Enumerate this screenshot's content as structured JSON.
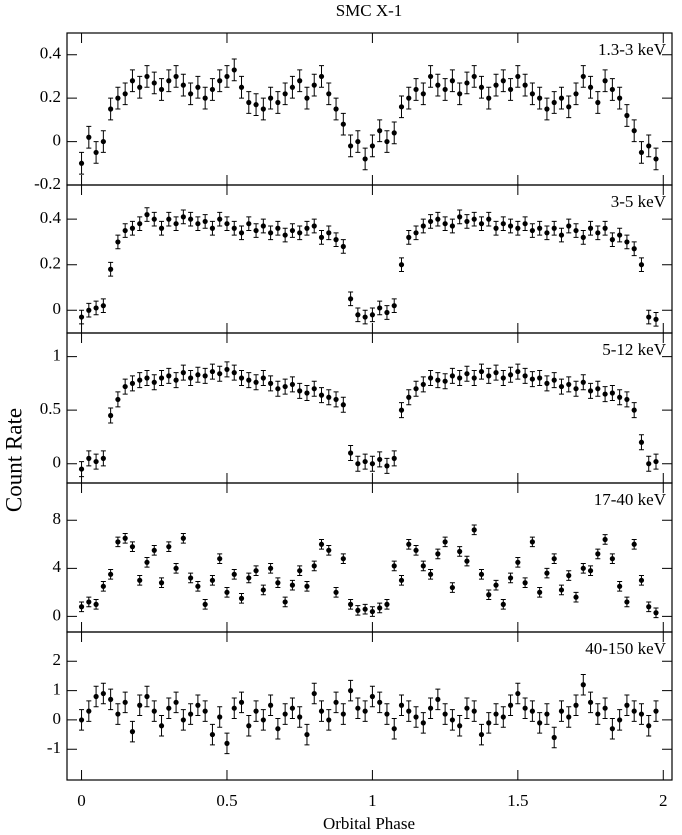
{
  "title": "SMC X-1",
  "x_label": "Orbital Phase",
  "y_label": "Count Rate",
  "chart_data": [
    {
      "type": "scatter",
      "label": "1.3-3 keV",
      "xlim": [
        -0.05,
        2.03
      ],
      "xticks": [
        0,
        0.5,
        1,
        1.5,
        2
      ],
      "ylim": [
        -0.2,
        0.5
      ],
      "yticks": [
        -0.2,
        0,
        0.2,
        0.4
      ],
      "color": "#000000",
      "yerr": 0.05,
      "x": [
        0,
        0.025,
        0.05,
        0.075,
        0.1,
        0.125,
        0.15,
        0.175,
        0.2,
        0.225,
        0.25,
        0.275,
        0.3,
        0.325,
        0.35,
        0.375,
        0.4,
        0.425,
        0.45,
        0.475,
        0.5,
        0.525,
        0.55,
        0.575,
        0.6,
        0.625,
        0.65,
        0.675,
        0.7,
        0.725,
        0.75,
        0.775,
        0.8,
        0.825,
        0.85,
        0.875,
        0.9,
        0.925,
        0.95,
        0.975,
        1,
        1.025,
        1.05,
        1.075,
        1.1,
        1.125,
        1.15,
        1.175,
        1.2,
        1.225,
        1.25,
        1.275,
        1.3,
        1.325,
        1.35,
        1.375,
        1.4,
        1.425,
        1.45,
        1.475,
        1.5,
        1.525,
        1.55,
        1.575,
        1.6,
        1.625,
        1.65,
        1.675,
        1.7,
        1.725,
        1.75,
        1.775,
        1.8,
        1.825,
        1.85,
        1.875,
        1.9,
        1.925,
        1.95,
        1.975
      ],
      "values": [
        -0.1,
        0.02,
        -0.05,
        0.0,
        0.15,
        0.2,
        0.22,
        0.28,
        0.25,
        0.3,
        0.27,
        0.24,
        0.28,
        0.3,
        0.26,
        0.22,
        0.25,
        0.2,
        0.24,
        0.28,
        0.3,
        0.33,
        0.25,
        0.18,
        0.17,
        0.15,
        0.2,
        0.18,
        0.22,
        0.25,
        0.28,
        0.2,
        0.26,
        0.3,
        0.22,
        0.15,
        0.08,
        -0.02,
        0.0,
        -0.08,
        -0.02,
        0.05,
        0.0,
        0.04,
        0.16,
        0.2,
        0.24,
        0.22,
        0.3,
        0.26,
        0.24,
        0.28,
        0.22,
        0.27,
        0.3,
        0.25,
        0.2,
        0.26,
        0.28,
        0.24,
        0.3,
        0.26,
        0.22,
        0.2,
        0.15,
        0.18,
        0.2,
        0.16,
        0.22,
        0.3,
        0.25,
        0.18,
        0.28,
        0.24,
        0.2,
        0.12,
        0.05,
        -0.05,
        -0.02,
        -0.08
      ]
    },
    {
      "type": "scatter",
      "label": "3-5 keV",
      "xlim": [
        -0.05,
        2.03
      ],
      "xticks": [
        0,
        0.5,
        1,
        1.5,
        2
      ],
      "ylim": [
        -0.1,
        0.55
      ],
      "yticks": [
        0,
        0.2,
        0.4
      ],
      "color": "#000000",
      "yerr": 0.03,
      "x": [
        0,
        0.025,
        0.05,
        0.075,
        0.1,
        0.125,
        0.15,
        0.175,
        0.2,
        0.225,
        0.25,
        0.275,
        0.3,
        0.325,
        0.35,
        0.375,
        0.4,
        0.425,
        0.45,
        0.475,
        0.5,
        0.525,
        0.55,
        0.575,
        0.6,
        0.625,
        0.65,
        0.675,
        0.7,
        0.725,
        0.75,
        0.775,
        0.8,
        0.825,
        0.85,
        0.875,
        0.9,
        0.925,
        0.95,
        0.975,
        1,
        1.025,
        1.05,
        1.075,
        1.1,
        1.125,
        1.15,
        1.175,
        1.2,
        1.225,
        1.25,
        1.275,
        1.3,
        1.325,
        1.35,
        1.375,
        1.4,
        1.425,
        1.45,
        1.475,
        1.5,
        1.525,
        1.55,
        1.575,
        1.6,
        1.625,
        1.65,
        1.675,
        1.7,
        1.725,
        1.75,
        1.775,
        1.8,
        1.825,
        1.85,
        1.875,
        1.9,
        1.925,
        1.95,
        1.975
      ],
      "values": [
        -0.03,
        0.0,
        0.01,
        0.02,
        0.18,
        0.3,
        0.35,
        0.36,
        0.38,
        0.42,
        0.4,
        0.36,
        0.4,
        0.38,
        0.41,
        0.4,
        0.38,
        0.39,
        0.36,
        0.4,
        0.38,
        0.36,
        0.34,
        0.38,
        0.35,
        0.37,
        0.34,
        0.36,
        0.33,
        0.35,
        0.34,
        0.36,
        0.37,
        0.32,
        0.34,
        0.31,
        0.28,
        0.05,
        -0.02,
        -0.03,
        -0.02,
        0.01,
        -0.01,
        0.02,
        0.2,
        0.32,
        0.34,
        0.37,
        0.39,
        0.4,
        0.38,
        0.37,
        0.41,
        0.39,
        0.4,
        0.38,
        0.4,
        0.36,
        0.38,
        0.37,
        0.36,
        0.38,
        0.35,
        0.36,
        0.34,
        0.36,
        0.33,
        0.37,
        0.35,
        0.32,
        0.36,
        0.34,
        0.36,
        0.31,
        0.33,
        0.3,
        0.27,
        0.2,
        -0.03,
        -0.04
      ]
    },
    {
      "type": "scatter",
      "label": "5-12 keV",
      "xlim": [
        -0.05,
        2.03
      ],
      "xticks": [
        0,
        0.5,
        1,
        1.5,
        2
      ],
      "ylim": [
        -0.18,
        1.22
      ],
      "yticks": [
        0,
        0.5,
        1
      ],
      "color": "#000000",
      "yerr": 0.07,
      "x": [
        0,
        0.025,
        0.05,
        0.075,
        0.1,
        0.125,
        0.15,
        0.175,
        0.2,
        0.225,
        0.25,
        0.275,
        0.3,
        0.325,
        0.35,
        0.375,
        0.4,
        0.425,
        0.45,
        0.475,
        0.5,
        0.525,
        0.55,
        0.575,
        0.6,
        0.625,
        0.65,
        0.675,
        0.7,
        0.725,
        0.75,
        0.775,
        0.8,
        0.825,
        0.85,
        0.875,
        0.9,
        0.925,
        0.95,
        0.975,
        1,
        1.025,
        1.05,
        1.075,
        1.1,
        1.125,
        1.15,
        1.175,
        1.2,
        1.225,
        1.25,
        1.275,
        1.3,
        1.325,
        1.35,
        1.375,
        1.4,
        1.425,
        1.45,
        1.475,
        1.5,
        1.525,
        1.55,
        1.575,
        1.6,
        1.625,
        1.65,
        1.675,
        1.7,
        1.725,
        1.75,
        1.775,
        1.8,
        1.825,
        1.85,
        1.875,
        1.9,
        1.925,
        1.95,
        1.975
      ],
      "values": [
        -0.05,
        0.05,
        0.02,
        0.05,
        0.45,
        0.6,
        0.72,
        0.75,
        0.78,
        0.8,
        0.76,
        0.8,
        0.82,
        0.78,
        0.85,
        0.8,
        0.83,
        0.82,
        0.86,
        0.84,
        0.88,
        0.85,
        0.8,
        0.78,
        0.76,
        0.8,
        0.75,
        0.7,
        0.72,
        0.74,
        0.68,
        0.66,
        0.7,
        0.64,
        0.62,
        0.6,
        0.55,
        0.1,
        0.0,
        0.02,
        0.0,
        0.04,
        -0.02,
        0.05,
        0.5,
        0.62,
        0.7,
        0.74,
        0.8,
        0.78,
        0.77,
        0.82,
        0.8,
        0.84,
        0.8,
        0.86,
        0.82,
        0.85,
        0.8,
        0.83,
        0.86,
        0.82,
        0.79,
        0.8,
        0.75,
        0.78,
        0.72,
        0.74,
        0.7,
        0.76,
        0.68,
        0.7,
        0.65,
        0.66,
        0.62,
        0.6,
        0.5,
        0.2,
        0.0,
        0.02
      ]
    },
    {
      "type": "scatter",
      "label": "17-40 keV",
      "xlim": [
        -0.05,
        2.03
      ],
      "xticks": [
        0,
        0.5,
        1,
        1.5,
        2
      ],
      "ylim": [
        -1.3,
        11.1
      ],
      "yticks": [
        0,
        4,
        8
      ],
      "color": "#000000",
      "yerr": 0.4,
      "x": [
        0,
        0.025,
        0.05,
        0.075,
        0.1,
        0.125,
        0.15,
        0.175,
        0.2,
        0.225,
        0.25,
        0.275,
        0.3,
        0.325,
        0.35,
        0.375,
        0.4,
        0.425,
        0.45,
        0.475,
        0.5,
        0.525,
        0.55,
        0.575,
        0.6,
        0.625,
        0.65,
        0.675,
        0.7,
        0.725,
        0.75,
        0.775,
        0.8,
        0.825,
        0.85,
        0.875,
        0.9,
        0.925,
        0.95,
        0.975,
        1,
        1.025,
        1.05,
        1.075,
        1.1,
        1.125,
        1.15,
        1.175,
        1.2,
        1.225,
        1.25,
        1.275,
        1.3,
        1.325,
        1.35,
        1.375,
        1.4,
        1.425,
        1.45,
        1.475,
        1.5,
        1.525,
        1.55,
        1.575,
        1.6,
        1.625,
        1.65,
        1.675,
        1.7,
        1.725,
        1.75,
        1.775,
        1.8,
        1.825,
        1.85,
        1.875,
        1.9,
        1.925,
        1.95,
        1.975
      ],
      "values": [
        0.8,
        1.2,
        1.0,
        2.5,
        3.5,
        6.2,
        6.5,
        5.8,
        3.0,
        4.5,
        5.5,
        2.8,
        5.8,
        4.0,
        6.5,
        3.2,
        2.5,
        1.0,
        3.0,
        4.8,
        2.0,
        3.5,
        1.5,
        3.2,
        3.8,
        2.2,
        4.0,
        2.8,
        1.2,
        2.6,
        3.8,
        2.5,
        4.2,
        6.0,
        5.5,
        2.0,
        4.8,
        1.0,
        0.5,
        0.6,
        0.4,
        0.7,
        1.0,
        4.2,
        3.0,
        6.0,
        5.5,
        4.2,
        3.5,
        5.2,
        6.2,
        2.4,
        5.4,
        4.6,
        7.2,
        3.5,
        1.8,
        2.6,
        1.0,
        3.2,
        4.5,
        2.8,
        6.2,
        2.0,
        3.6,
        4.8,
        2.2,
        3.4,
        1.6,
        4.0,
        3.8,
        5.2,
        6.4,
        4.8,
        2.5,
        1.2,
        6.0,
        3.0,
        0.8,
        0.3
      ]
    },
    {
      "type": "scatter",
      "label": "40-150 keV",
      "xlim": [
        -0.05,
        2.03
      ],
      "xticks": [
        0,
        0.5,
        1,
        1.5,
        2
      ],
      "ylim": [
        -2.05,
        3
      ],
      "yticks": [
        -1,
        0,
        1,
        2
      ],
      "color": "#000000",
      "yerr": 0.35,
      "x": [
        0,
        0.025,
        0.05,
        0.075,
        0.1,
        0.125,
        0.15,
        0.175,
        0.2,
        0.225,
        0.25,
        0.275,
        0.3,
        0.325,
        0.35,
        0.375,
        0.4,
        0.425,
        0.45,
        0.475,
        0.5,
        0.525,
        0.55,
        0.575,
        0.6,
        0.625,
        0.65,
        0.675,
        0.7,
        0.725,
        0.75,
        0.775,
        0.8,
        0.825,
        0.85,
        0.875,
        0.9,
        0.925,
        0.95,
        0.975,
        1,
        1.025,
        1.05,
        1.075,
        1.1,
        1.125,
        1.15,
        1.175,
        1.2,
        1.225,
        1.25,
        1.275,
        1.3,
        1.325,
        1.35,
        1.375,
        1.4,
        1.425,
        1.45,
        1.475,
        1.5,
        1.525,
        1.55,
        1.575,
        1.6,
        1.625,
        1.65,
        1.675,
        1.7,
        1.725,
        1.75,
        1.775,
        1.8,
        1.825,
        1.85,
        1.875,
        1.9,
        1.925,
        1.95,
        1.975
      ],
      "values": [
        0.0,
        0.3,
        0.8,
        0.9,
        0.7,
        0.2,
        0.6,
        -0.4,
        0.5,
        0.8,
        0.3,
        -0.2,
        0.4,
        0.6,
        0.0,
        0.2,
        0.5,
        0.3,
        -0.5,
        0.1,
        -0.8,
        0.4,
        0.6,
        -0.2,
        0.3,
        0.0,
        0.5,
        -0.3,
        0.2,
        0.4,
        0.1,
        -0.5,
        0.9,
        0.3,
        0.0,
        0.6,
        0.2,
        1.0,
        0.4,
        0.3,
        0.8,
        0.6,
        0.2,
        -0.3,
        0.5,
        0.3,
        0.1,
        -0.1,
        0.4,
        0.7,
        0.2,
        0.0,
        -0.2,
        0.4,
        0.3,
        -0.5,
        -0.1,
        0.2,
        0.1,
        0.5,
        0.9,
        0.4,
        0.3,
        -0.1,
        0.2,
        -0.6,
        0.3,
        0.1,
        0.5,
        1.2,
        0.6,
        0.2,
        0.4,
        -0.3,
        0.0,
        0.5,
        0.3,
        0.2,
        -0.2,
        0.3
      ]
    }
  ]
}
